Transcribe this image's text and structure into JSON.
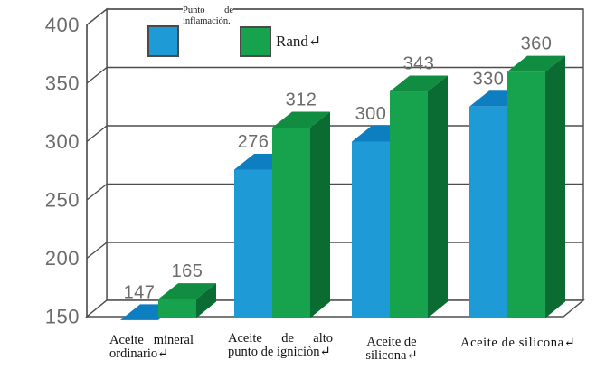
{
  "chart_data": {
    "type": "bar",
    "projection": "3d",
    "title": "",
    "xlabel": "",
    "ylabel": "",
    "categories": [
      "Aceite mineral ordinario↵",
      "Aceite de alto punto de igniòn de igniciòn↵",
      "Aceite de silicona↵",
      "Aceite de silicona↵"
    ],
    "series": [
      {
        "name": "Punto de inflamación.",
        "values": [
          147,
          276,
          300,
          330
        ],
        "color_front": "#1E9AD6",
        "color_top": "#0D7EC0",
        "color_side": "#0A67A6"
      },
      {
        "name": "Rand↵",
        "values": [
          165,
          312,
          343,
          360
        ],
        "color_front": "#17A34D",
        "color_top": "#108D41",
        "color_side": "#0A6B33"
      }
    ],
    "ylim": [
      150,
      400
    ],
    "yticks": [
      150,
      200,
      250,
      300,
      350,
      400
    ],
    "grid": true,
    "legend_position": "top-left",
    "axis_text_color": "#6b6b6b",
    "data_label_color": "#6b6b6b",
    "wall_line_color": "#4d4d4d"
  }
}
